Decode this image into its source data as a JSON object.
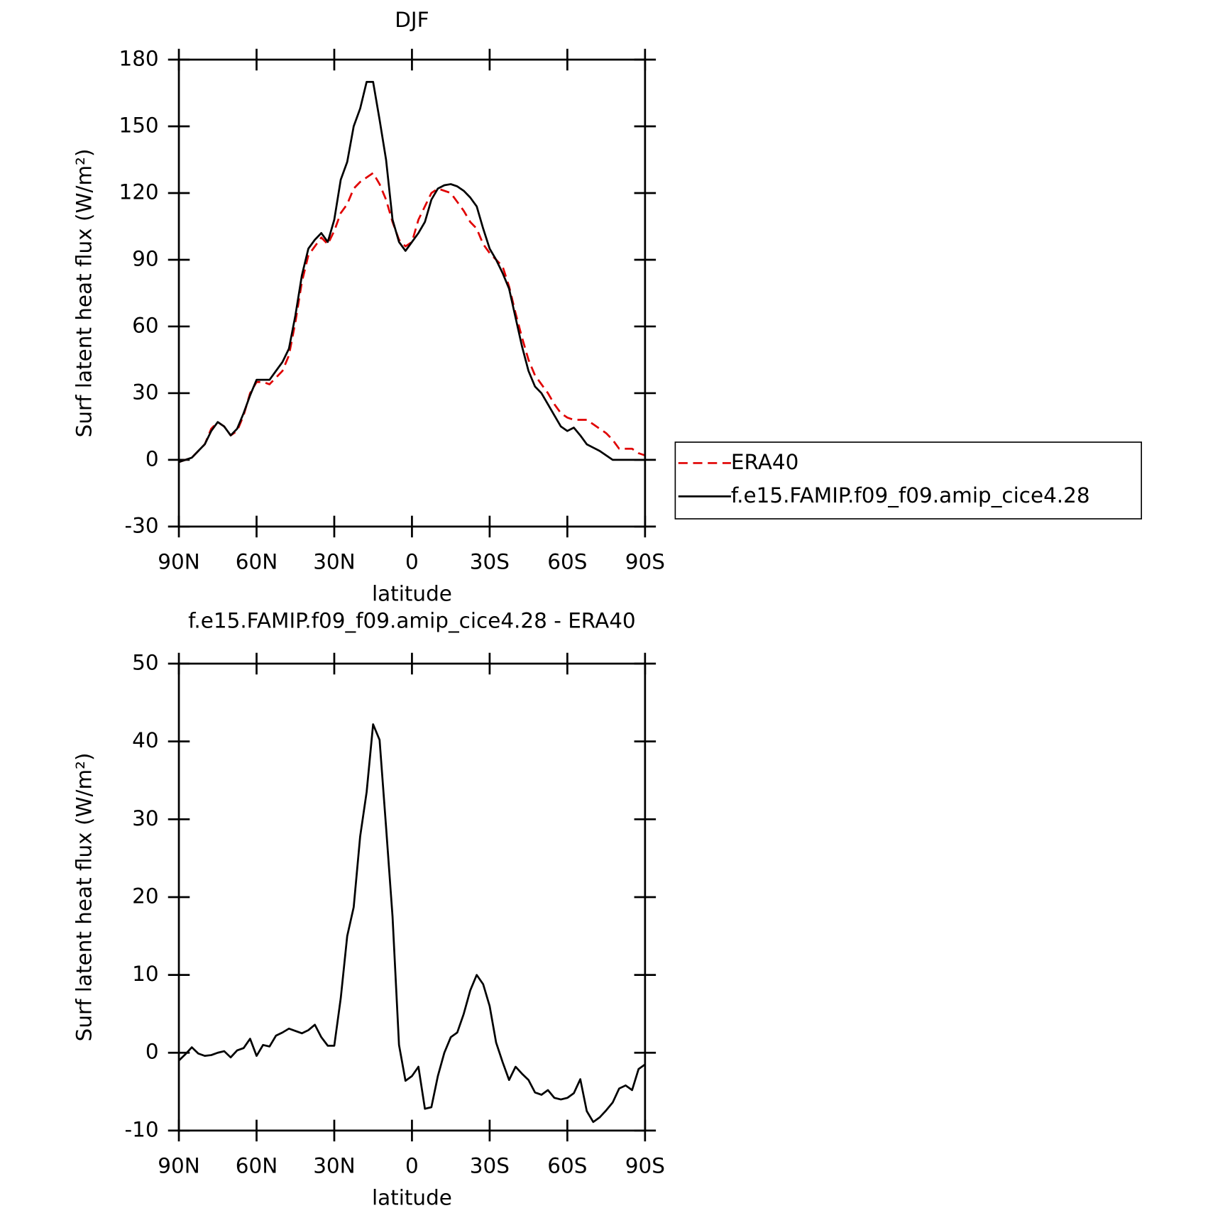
{
  "chart_data": [
    {
      "type": "line",
      "title": "DJF",
      "x_label": "latitude",
      "y_label": "Surf latent heat flux (W/m²)",
      "x": [
        90,
        87.5,
        85,
        82.5,
        80,
        77.5,
        75,
        72.5,
        70,
        67.5,
        65,
        62.5,
        60,
        57.5,
        55,
        52.5,
        50,
        47.5,
        45,
        42.5,
        40,
        37.5,
        35,
        32.5,
        30,
        27.5,
        25,
        22.5,
        20,
        17.5,
        15,
        12.5,
        10,
        7.5,
        5,
        2.5,
        0,
        -2.5,
        -5,
        -7.5,
        -10,
        -12.5,
        -15,
        -17.5,
        -20,
        -22.5,
        -25,
        -27.5,
        -30,
        -32.5,
        -35,
        -37.5,
        -40,
        -42.5,
        -45,
        -47.5,
        -50,
        -52.5,
        -55,
        -57.5,
        -60,
        -62.5,
        -65,
        -67.5,
        -70,
        -72.5,
        -75,
        -77.5,
        -80,
        -82.5,
        -85,
        -87.5,
        -90
      ],
      "xlim": [
        90,
        -90
      ],
      "xticks": [
        {
          "value": 90,
          "label": "90N"
        },
        {
          "value": 60,
          "label": "60N"
        },
        {
          "value": 30,
          "label": "30N"
        },
        0,
        {
          "value": -30,
          "label": "30S"
        },
        {
          "value": -60,
          "label": "60S"
        },
        {
          "value": -90,
          "label": "90S"
        }
      ],
      "ylim": [
        -30,
        180
      ],
      "yticks": [
        -30,
        0,
        30,
        60,
        90,
        120,
        150,
        180
      ],
      "legend": "right",
      "series": [
        {
          "name": "ERA40",
          "color": "#e00000",
          "line_style": "dashed",
          "values": [
            -1,
            0,
            1,
            4,
            7,
            14,
            17,
            15,
            11,
            13,
            20,
            30,
            35,
            35,
            34,
            37,
            40,
            47,
            62,
            80,
            92,
            96,
            100,
            97,
            103,
            111,
            115,
            122,
            125,
            127,
            129,
            124,
            117,
            107,
            99,
            96,
            98,
            108,
            114,
            120,
            122,
            121,
            120,
            116,
            112,
            107,
            104,
            97,
            93,
            90,
            87,
            78,
            66,
            55,
            45,
            38,
            34,
            30,
            25,
            21,
            19,
            18,
            18,
            18,
            16,
            14,
            12,
            9,
            5,
            5,
            5,
            3,
            2
          ]
        },
        {
          "name": "f.e15.FAMIP.f09_f09.amip_cice4.28",
          "color": "#000000",
          "line_style": "solid",
          "values": [
            -1,
            0,
            1,
            4,
            7,
            13,
            17,
            15,
            11,
            14,
            21,
            29,
            36,
            36,
            36,
            40,
            44,
            50,
            65,
            83,
            95,
            99,
            102,
            98,
            108,
            126,
            134,
            150,
            158,
            170,
            170,
            153,
            135,
            108,
            98,
            94,
            98,
            102,
            107,
            117,
            122,
            123.5,
            124,
            123,
            121,
            118,
            114,
            104,
            95,
            90,
            84,
            77,
            64,
            51,
            40,
            33,
            30,
            25,
            20,
            15,
            13,
            14.5,
            11,
            7,
            5.5,
            4,
            2,
            0,
            0,
            0,
            0,
            0,
            0
          ]
        }
      ]
    },
    {
      "type": "line",
      "title": "f.e15.FAMIP.f09_f09.amip_cice4.28 - ERA40",
      "x_label": "latitude",
      "y_label": "Surf latent heat flux (W/m²)",
      "x": [
        90,
        87.5,
        85,
        82.5,
        80,
        77.5,
        75,
        72.5,
        70,
        67.5,
        65,
        62.5,
        60,
        57.5,
        55,
        52.5,
        50,
        47.5,
        45,
        42.5,
        40,
        37.5,
        35,
        32.5,
        30,
        27.5,
        25,
        22.5,
        20,
        17.5,
        15,
        12.5,
        10,
        7.5,
        5,
        2.5,
        0,
        -2.5,
        -5,
        -7.5,
        -10,
        -12.5,
        -15,
        -17.5,
        -20,
        -22.5,
        -25,
        -27.5,
        -30,
        -32.5,
        -35,
        -37.5,
        -40,
        -42.5,
        -45,
        -47.5,
        -50,
        -52.5,
        -55,
        -57.5,
        -60,
        -62.5,
        -65,
        -67.5,
        -70,
        -72.5,
        -75,
        -77.5,
        -80,
        -82.5,
        -85,
        -87.5,
        -90
      ],
      "xlim": [
        90,
        -90
      ],
      "xticks": [
        {
          "value": 90,
          "label": "90N"
        },
        {
          "value": 60,
          "label": "60N"
        },
        {
          "value": 30,
          "label": "30N"
        },
        0,
        {
          "value": -30,
          "label": "30S"
        },
        {
          "value": -60,
          "label": "60S"
        },
        {
          "value": -90,
          "label": "90S"
        }
      ],
      "ylim": [
        -10,
        50
      ],
      "yticks": [
        -10,
        0,
        10,
        20,
        30,
        40,
        50
      ],
      "color": "#000000",
      "line_style": "solid",
      "values": [
        -1,
        -0.2,
        0.7,
        -0.1,
        -0.4,
        -0.3,
        0,
        0.2,
        -0.6,
        0.3,
        0.6,
        1.8,
        -0.4,
        1,
        0.8,
        2.2,
        2.6,
        3.1,
        2.8,
        2.5,
        2.9,
        3.6,
        2,
        0.9,
        0.9,
        7,
        15,
        18.7,
        27.8,
        33.5,
        42.2,
        40.2,
        29,
        17.5,
        1,
        -3.6,
        -3,
        -1.8,
        -7.2,
        -7,
        -3,
        0,
        2,
        2.6,
        5,
        8,
        10,
        8.8,
        6,
        1.3,
        -1.2,
        -3.5,
        -1.8,
        -2.7,
        -3.5,
        -5.1,
        -5.4,
        -4.8,
        -5.8,
        -6,
        -5.8,
        -5.2,
        -3.4,
        -7.5,
        -8.9,
        -8.3,
        -7.4,
        -6.4,
        -4.6,
        -4.2,
        -4.8,
        -2.1,
        -1.5
      ]
    }
  ]
}
